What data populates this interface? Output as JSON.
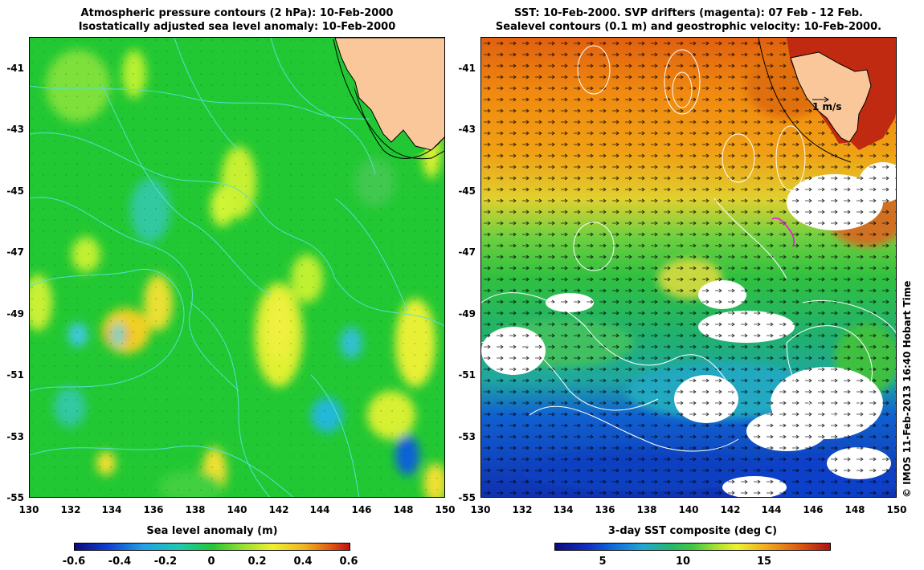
{
  "left_panel": {
    "title_line1": "Atmospheric pressure contours (2 hPa): 10-Feb-2000",
    "title_line2": "Isostatically adjusted sea level anomaly: 10-Feb-2000",
    "colorbar_label": "Sea level anomaly (m)",
    "colorbar_ticks": [
      "-0.6",
      "-0.4",
      "-0.2",
      "0",
      "0.2",
      "0.4",
      "0.6"
    ]
  },
  "right_panel": {
    "title_line1": "SST: 10-Feb-2000. SVP drifters (magenta): 07 Feb - 12 Feb.",
    "title_line2": "Sealevel contours (0.1 m) and geostrophic velocity: 10-Feb-2000.",
    "colorbar_label": "3-day SST composite (deg C)",
    "colorbar_ticks": [
      "5",
      "10",
      "15"
    ],
    "scale_arrow_label": "1 m/s"
  },
  "axes": {
    "y_ticks": [
      "-41",
      "-43",
      "-45",
      "-47",
      "-49",
      "-51",
      "-53",
      "-55"
    ],
    "x_ticks": [
      "130",
      "132",
      "134",
      "136",
      "138",
      "140",
      "142",
      "144",
      "146",
      "148",
      "150"
    ]
  },
  "credit": "© IMOS 11-Feb-2013 16:40 Hobart Time",
  "colors": {
    "land": "#f9c79a",
    "sla_background": "#22c833",
    "contour_cyan": "#55e0d0",
    "drifter_magenta": "#ff00ff"
  }
}
